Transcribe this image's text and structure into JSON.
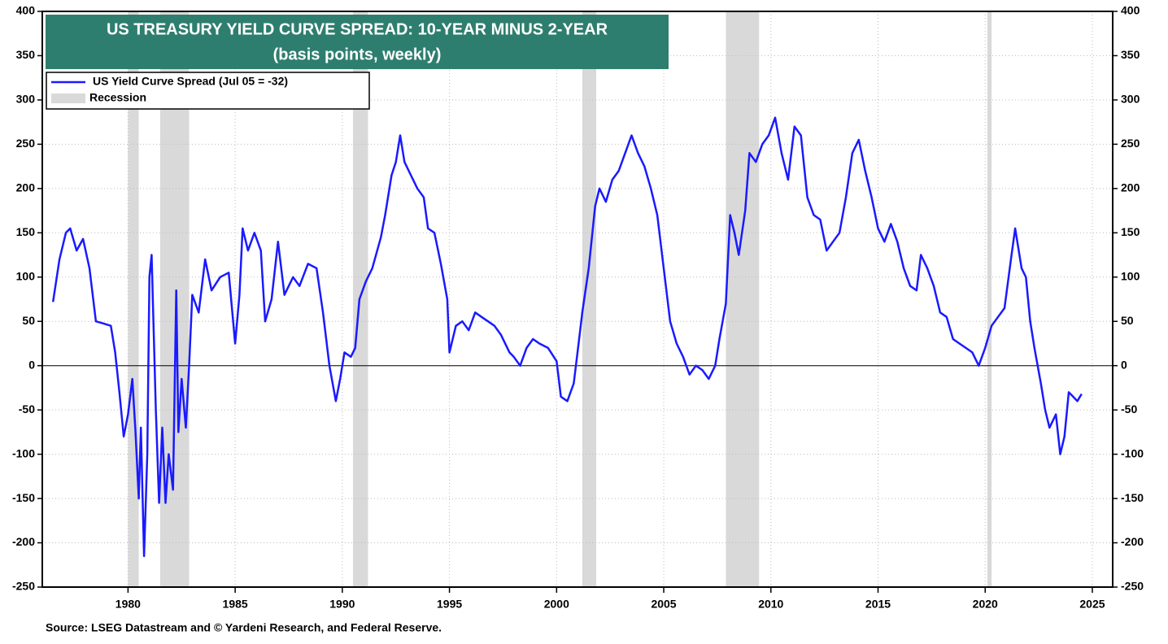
{
  "chart_data": {
    "type": "line",
    "title": "US TREASURY YIELD CURVE SPREAD: 10-YEAR MINUS 2-YEAR",
    "subtitle": "(basis points, weekly)",
    "source": "Source: LSEG Datastream and © Yardeni Research, and Federal Reserve.",
    "xlim": [
      1976,
      2025.95
    ],
    "xticks": [
      1980,
      1985,
      1990,
      1995,
      2000,
      2005,
      2010,
      2015,
      2020,
      2025
    ],
    "ylim": [
      -250,
      400
    ],
    "yticks": [
      -250,
      -200,
      -150,
      -100,
      -50,
      0,
      50,
      100,
      150,
      200,
      250,
      300,
      350,
      400
    ],
    "grid": true,
    "legend": "top-left",
    "recession_name": "Recession",
    "recession_color": "#d9d9d9",
    "recessions": [
      {
        "start": 1980.0,
        "end": 1980.5
      },
      {
        "start": 1981.5,
        "end": 1982.85
      },
      {
        "start": 1990.5,
        "end": 1991.2
      },
      {
        "start": 2001.2,
        "end": 2001.85
      },
      {
        "start": 2007.9,
        "end": 2009.45
      },
      {
        "start": 2020.1,
        "end": 2020.3
      }
    ],
    "series": [
      {
        "name": "US Yield Curve Spread (Jul 05 = -32)",
        "color": "#1a1aff",
        "x": [
          1976.5,
          1976.8,
          1977.1,
          1977.3,
          1977.6,
          1977.9,
          1978.2,
          1978.5,
          1978.8,
          1979.2,
          1979.4,
          1979.6,
          1979.8,
          1980.0,
          1980.2,
          1980.35,
          1980.5,
          1980.6,
          1980.75,
          1980.9,
          1981.0,
          1981.1,
          1981.3,
          1981.45,
          1981.6,
          1981.75,
          1981.9,
          1982.1,
          1982.25,
          1982.35,
          1982.5,
          1982.7,
          1982.85,
          1983.0,
          1983.3,
          1983.6,
          1983.9,
          1984.3,
          1984.7,
          1985.0,
          1985.2,
          1985.35,
          1985.6,
          1985.9,
          1986.2,
          1986.4,
          1986.7,
          1987.0,
          1987.3,
          1987.7,
          1988.0,
          1988.4,
          1988.8,
          1989.1,
          1989.4,
          1989.7,
          1989.9,
          1990.1,
          1990.4,
          1990.6,
          1990.8,
          1991.1,
          1991.4,
          1991.8,
          1992.0,
          1992.3,
          1992.5,
          1992.7,
          1992.9,
          1993.2,
          1993.5,
          1993.8,
          1994.0,
          1994.3,
          1994.6,
          1994.9,
          1995.0,
          1995.3,
          1995.6,
          1995.9,
          1996.2,
          1996.5,
          1996.8,
          1997.1,
          1997.4,
          1997.8,
          1998.0,
          1998.3,
          1998.6,
          1998.9,
          1999.2,
          1999.6,
          2000.0,
          2000.2,
          2000.5,
          2000.8,
          2001.0,
          2001.2,
          2001.5,
          2001.8,
          2002.0,
          2002.3,
          2002.6,
          2002.9,
          2003.2,
          2003.5,
          2003.8,
          2004.1,
          2004.4,
          2004.7,
          2005.0,
          2005.3,
          2005.6,
          2005.9,
          2006.2,
          2006.5,
          2006.8,
          2007.1,
          2007.4,
          2007.6,
          2007.9,
          2008.1,
          2008.3,
          2008.5,
          2008.8,
          2009.0,
          2009.3,
          2009.6,
          2009.9,
          2010.2,
          2010.5,
          2010.8,
          2011.1,
          2011.4,
          2011.7,
          2012.0,
          2012.3,
          2012.6,
          2012.9,
          2013.2,
          2013.5,
          2013.8,
          2014.1,
          2014.4,
          2014.7,
          2015.0,
          2015.3,
          2015.6,
          2015.9,
          2016.2,
          2016.5,
          2016.8,
          2017.0,
          2017.3,
          2017.6,
          2017.9,
          2018.2,
          2018.5,
          2018.8,
          2019.1,
          2019.4,
          2019.7,
          2020.0,
          2020.3,
          2020.6,
          2020.9,
          2021.2,
          2021.4,
          2021.7,
          2021.9,
          2022.1,
          2022.3,
          2022.6,
          2022.8,
          2023.0,
          2023.3,
          2023.5,
          2023.7,
          2023.9,
          2024.1,
          2024.3,
          2024.5
        ],
        "values": [
          72,
          120,
          150,
          155,
          130,
          143,
          110,
          50,
          48,
          45,
          15,
          -30,
          -80,
          -55,
          -15,
          -75,
          -150,
          -70,
          -215,
          -100,
          100,
          125,
          -50,
          -155,
          -70,
          -155,
          -100,
          -140,
          85,
          -75,
          -15,
          -70,
          0,
          80,
          60,
          120,
          85,
          100,
          105,
          25,
          80,
          155,
          130,
          150,
          130,
          50,
          75,
          140,
          80,
          100,
          90,
          115,
          110,
          60,
          0,
          -40,
          -15,
          15,
          10,
          20,
          75,
          95,
          110,
          145,
          170,
          215,
          230,
          260,
          230,
          215,
          200,
          190,
          155,
          150,
          115,
          75,
          15,
          45,
          50,
          40,
          60,
          55,
          50,
          45,
          35,
          15,
          10,
          0,
          20,
          30,
          25,
          20,
          5,
          -35,
          -40,
          -20,
          20,
          60,
          110,
          180,
          200,
          185,
          210,
          220,
          240,
          260,
          240,
          225,
          200,
          170,
          110,
          50,
          25,
          10,
          -10,
          0,
          -5,
          -15,
          0,
          30,
          70,
          170,
          150,
          125,
          175,
          240,
          230,
          250,
          260,
          280,
          240,
          210,
          270,
          260,
          190,
          170,
          165,
          130,
          140,
          150,
          190,
          240,
          255,
          220,
          190,
          155,
          140,
          160,
          140,
          110,
          90,
          85,
          125,
          110,
          90,
          60,
          55,
          30,
          25,
          20,
          15,
          0,
          20,
          45,
          55,
          65,
          120,
          155,
          110,
          100,
          50,
          20,
          -20,
          -50,
          -70,
          -55,
          -100,
          -80,
          -30,
          -35,
          -40,
          -32
        ]
      }
    ]
  }
}
